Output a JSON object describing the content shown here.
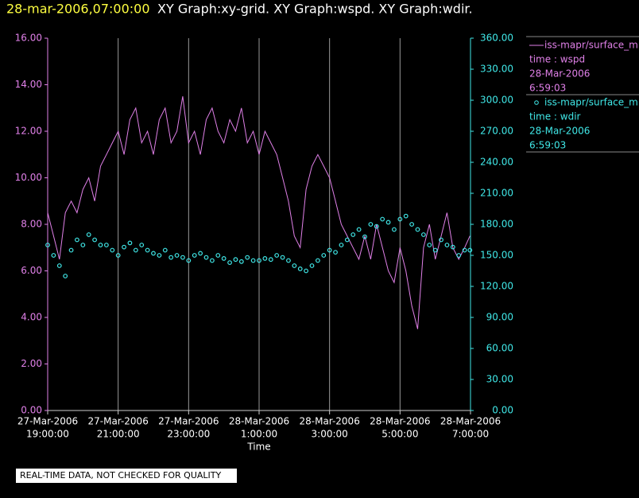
{
  "header": {
    "datetime": "28-mar-2006,07:00:00",
    "title": "XY Graph:xy-grid.  XY Graph:wspd.  XY Graph:wdir."
  },
  "chart_data": {
    "type": "line_scatter",
    "xlabel": "Time",
    "xlim": [
      "2006-03-27T19:00:00",
      "2006-03-28T07:00:00"
    ],
    "xticks": [
      {
        "value": "2006-03-27T19:00:00",
        "label": [
          "27-Mar-2006",
          "19:00:00"
        ]
      },
      {
        "value": "2006-03-27T21:00:00",
        "label": [
          "27-Mar-2006",
          "21:00:00"
        ]
      },
      {
        "value": "2006-03-27T23:00:00",
        "label": [
          "27-Mar-2006",
          "23:00:00"
        ]
      },
      {
        "value": "2006-03-28T01:00:00",
        "label": [
          "28-Mar-2006",
          "1:00:00"
        ]
      },
      {
        "value": "2006-03-28T03:00:00",
        "label": [
          "28-Mar-2006",
          "3:00:00"
        ]
      },
      {
        "value": "2006-03-28T05:00:00",
        "label": [
          "28-Mar-2006",
          "5:00:00"
        ]
      },
      {
        "value": "2006-03-28T07:00:00",
        "label": [
          "28-Mar-2006",
          "7:00:00"
        ]
      }
    ],
    "ylim": [
      0,
      16
    ],
    "yticks": [
      {
        "value": 0,
        "label": "0.00"
      },
      {
        "value": 2,
        "label": "2.00"
      },
      {
        "value": 4,
        "label": "4.00"
      },
      {
        "value": 6,
        "label": "6.00"
      },
      {
        "value": 8,
        "label": "8.00"
      },
      {
        "value": 10,
        "label": "10.00"
      },
      {
        "value": 12,
        "label": "12.00"
      },
      {
        "value": 14,
        "label": "14.00"
      },
      {
        "value": 16,
        "label": "16.00"
      }
    ],
    "y2lim": [
      0,
      360
    ],
    "y2ticks": [
      {
        "value": 0,
        "label": "0.00"
      },
      {
        "value": 30,
        "label": "30.00"
      },
      {
        "value": 60,
        "label": "60.00"
      },
      {
        "value": 90,
        "label": "90.00"
      },
      {
        "value": 120,
        "label": "120.00"
      },
      {
        "value": 150,
        "label": "150.00"
      },
      {
        "value": 180,
        "label": "180.00"
      },
      {
        "value": 210,
        "label": "210.00"
      },
      {
        "value": 240,
        "label": "240.00"
      },
      {
        "value": 270,
        "label": "270.00"
      },
      {
        "value": 300,
        "label": "300.00"
      },
      {
        "value": 330,
        "label": "330.00"
      },
      {
        "value": 360,
        "label": "360.00"
      }
    ],
    "grid": true,
    "x": [
      "2006-03-27T19:00:00",
      "2006-03-27T19:10:00",
      "2006-03-27T19:20:00",
      "2006-03-27T19:30:00",
      "2006-03-27T19:40:00",
      "2006-03-27T19:50:00",
      "2006-03-27T20:00:00",
      "2006-03-27T20:10:00",
      "2006-03-27T20:20:00",
      "2006-03-27T20:30:00",
      "2006-03-27T20:40:00",
      "2006-03-27T20:50:00",
      "2006-03-27T21:00:00",
      "2006-03-27T21:10:00",
      "2006-03-27T21:20:00",
      "2006-03-27T21:30:00",
      "2006-03-27T21:40:00",
      "2006-03-27T21:50:00",
      "2006-03-27T22:00:00",
      "2006-03-27T22:10:00",
      "2006-03-27T22:20:00",
      "2006-03-27T22:30:00",
      "2006-03-27T22:40:00",
      "2006-03-27T22:50:00",
      "2006-03-27T23:00:00",
      "2006-03-27T23:10:00",
      "2006-03-27T23:20:00",
      "2006-03-27T23:30:00",
      "2006-03-27T23:40:00",
      "2006-03-27T23:50:00",
      "2006-03-28T00:00:00",
      "2006-03-28T00:10:00",
      "2006-03-28T00:20:00",
      "2006-03-28T00:30:00",
      "2006-03-28T00:40:00",
      "2006-03-28T00:50:00",
      "2006-03-28T01:00:00",
      "2006-03-28T01:10:00",
      "2006-03-28T01:20:00",
      "2006-03-28T01:30:00",
      "2006-03-28T01:40:00",
      "2006-03-28T01:50:00",
      "2006-03-28T02:00:00",
      "2006-03-28T02:10:00",
      "2006-03-28T02:20:00",
      "2006-03-28T02:30:00",
      "2006-03-28T02:40:00",
      "2006-03-28T02:50:00",
      "2006-03-28T03:00:00",
      "2006-03-28T03:10:00",
      "2006-03-28T03:20:00",
      "2006-03-28T03:30:00",
      "2006-03-28T03:40:00",
      "2006-03-28T03:50:00",
      "2006-03-28T04:00:00",
      "2006-03-28T04:10:00",
      "2006-03-28T04:20:00",
      "2006-03-28T04:30:00",
      "2006-03-28T04:40:00",
      "2006-03-28T04:50:00",
      "2006-03-28T05:00:00",
      "2006-03-28T05:10:00",
      "2006-03-28T05:20:00",
      "2006-03-28T05:30:00",
      "2006-03-28T05:40:00",
      "2006-03-28T05:50:00",
      "2006-03-28T06:00:00",
      "2006-03-28T06:10:00",
      "2006-03-28T06:20:00",
      "2006-03-28T06:30:00",
      "2006-03-28T06:40:00",
      "2006-03-28T06:50:00",
      "2006-03-28T06:59:03"
    ],
    "series": [
      {
        "name": "iss-mapr/surface_m",
        "legend": [
          "time : wspd",
          "28-Mar-2006",
          "6:59:03"
        ],
        "color": "#e080e8",
        "mark": "line",
        "axis": "y",
        "values": [
          8.5,
          7.5,
          6.5,
          8.5,
          9,
          8.5,
          9.5,
          10,
          9,
          10.5,
          11,
          11.5,
          12,
          11,
          12.5,
          13,
          11.5,
          12,
          11,
          12.5,
          13,
          11.5,
          12,
          13.5,
          11.5,
          12,
          11,
          12.5,
          13,
          12,
          11.5,
          12.5,
          12,
          13,
          11.5,
          12,
          11,
          12,
          11.5,
          11,
          10,
          9,
          7.5,
          7,
          9.5,
          10.5,
          11,
          10.5,
          10,
          9,
          8,
          7.5,
          7,
          6.5,
          7.5,
          6.5,
          8,
          7,
          6,
          5.5,
          7,
          6,
          4.5,
          3.5,
          7,
          8,
          6.5,
          7.5,
          8.5,
          7,
          6.5,
          7,
          7.5
        ]
      },
      {
        "name": "iss-mapr/surface_m",
        "legend": [
          "time : wdir",
          "28-Mar-2006",
          "6:59:03"
        ],
        "color": "#40e8e8",
        "mark": "scatter",
        "axis": "y2",
        "values": [
          160,
          150,
          140,
          130,
          155,
          165,
          160,
          170,
          165,
          160,
          160,
          155,
          150,
          158,
          162,
          155,
          160,
          155,
          152,
          150,
          155,
          148,
          150,
          148,
          145,
          150,
          152,
          148,
          145,
          150,
          147,
          143,
          146,
          144,
          148,
          145,
          145,
          147,
          146,
          150,
          148,
          145,
          140,
          137,
          135,
          140,
          145,
          150,
          155,
          153,
          160,
          165,
          170,
          175,
          168,
          180,
          178,
          185,
          182,
          175,
          185,
          188,
          180,
          175,
          170,
          160,
          155,
          165,
          160,
          158,
          150,
          155,
          155
        ]
      }
    ]
  },
  "footer": {
    "note": "REAL-TIME DATA, NOT CHECKED FOR QUALITY"
  }
}
